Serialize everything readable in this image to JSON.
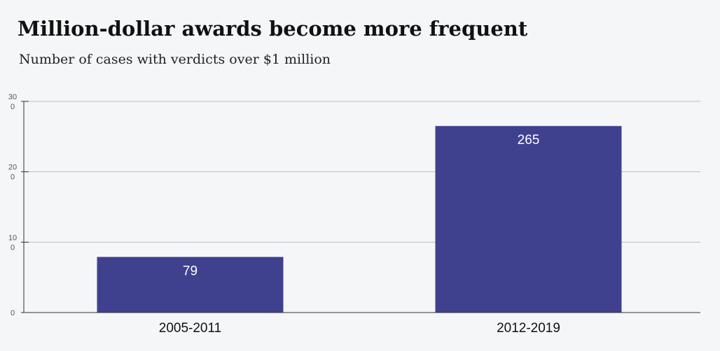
{
  "chart_data": {
    "type": "bar",
    "title": "Million-dollar awards become more frequent",
    "subtitle": "Number of cases with verdicts over $1 million",
    "categories": [
      "2005-2011",
      "2012-2019"
    ],
    "values": [
      79,
      265
    ],
    "ylim": [
      0,
      300
    ],
    "yticks": [
      0,
      100,
      200,
      300
    ],
    "ytick_labels": [
      [
        "0"
      ],
      [
        "10",
        "0"
      ],
      [
        "20",
        "0"
      ],
      [
        "30",
        "0"
      ]
    ],
    "data_labels": [
      "79",
      "265"
    ],
    "grid": true,
    "bar_color": "#3f418f",
    "xlabel": "",
    "ylabel": ""
  }
}
